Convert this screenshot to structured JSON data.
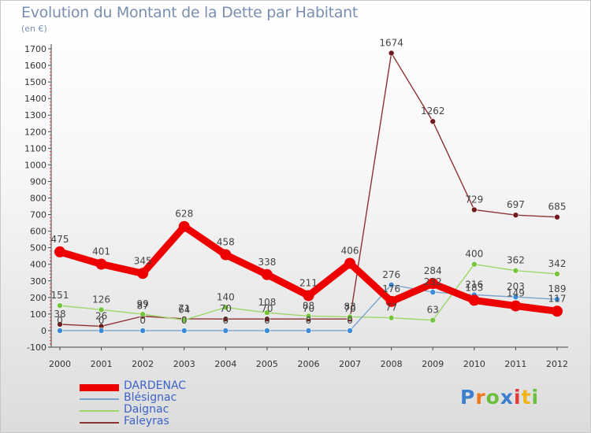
{
  "header": {
    "title": "Evolution du Montant de la Dette par Habitant",
    "unit": "(en €)"
  },
  "logo": {
    "text": "Proxiti",
    "colors": [
      "#3c7fd1",
      "#f07a1a",
      "#6bbf3a",
      "#3c7fd1",
      "#e03a3a",
      "#f0b41a",
      "#6bbf3a"
    ]
  },
  "chart_data": {
    "type": "line",
    "x": [
      "2000",
      "2001",
      "2002",
      "2003",
      "2004",
      "2005",
      "2006",
      "2007",
      "2008",
      "2009",
      "2010",
      "2011",
      "2012"
    ],
    "ylim": [
      -100,
      1700
    ],
    "yticks": [
      -100,
      0,
      100,
      200,
      300,
      400,
      500,
      600,
      700,
      800,
      900,
      1000,
      1100,
      1200,
      1300,
      1400,
      1500,
      1600,
      1700
    ],
    "grid": false,
    "legend_position": "bottom-left",
    "series": [
      {
        "name": "DARDENAC",
        "color": "#ee0000",
        "point_color": "#ee0000",
        "values": [
          475,
          401,
          345,
          628,
          458,
          338,
          211,
          406,
          176,
          284,
          183,
          149,
          117
        ]
      },
      {
        "name": "Blésignac",
        "color": "#7aa4cc",
        "point_color": "#3b8ad9",
        "values": [
          0,
          0,
          0,
          0,
          0,
          0,
          0,
          0,
          276,
          232,
          216,
          203,
          189
        ]
      },
      {
        "name": "Daignac",
        "color": "#9ed66a",
        "point_color": "#76c43c",
        "values": [
          151,
          126,
          99,
          64,
          140,
          108,
          88,
          83,
          77,
          63,
          400,
          362,
          342
        ]
      },
      {
        "name": "Faleyras",
        "color": "#8c3232",
        "point_color": "#701c1c",
        "values": [
          38,
          26,
          87,
          71,
          70,
          70,
          70,
          70,
          1674,
          1262,
          729,
          697,
          685
        ]
      }
    ]
  }
}
